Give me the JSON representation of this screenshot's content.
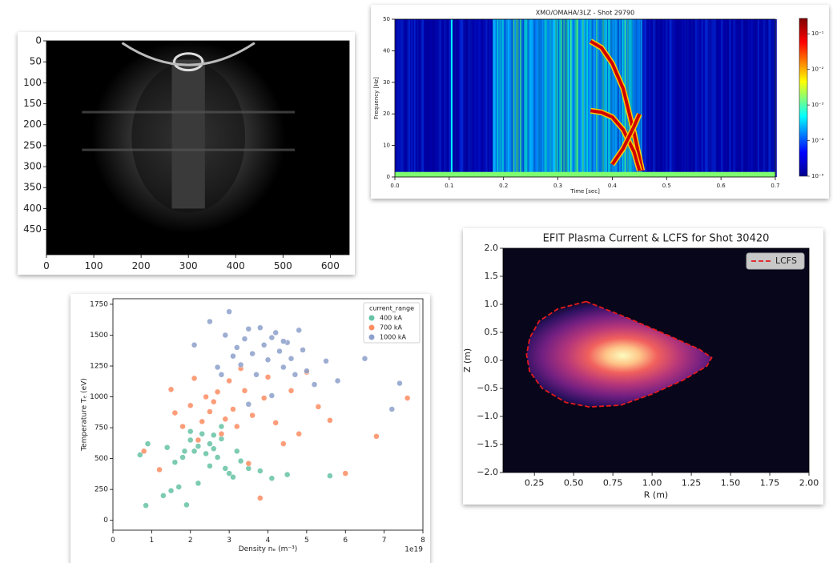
{
  "chart_data": [
    {
      "type": "image",
      "xlim": [
        0,
        640
      ],
      "ylim": [
        510,
        0
      ],
      "xticks": [
        0,
        100,
        200,
        300,
        400,
        500,
        600
      ],
      "yticks": [
        0,
        50,
        100,
        150,
        200,
        250,
        300,
        350,
        400,
        450
      ]
    },
    {
      "type": "heatmap",
      "title": "XMO/OMAHA/3LZ - Shot 29790",
      "xlabel": "Time [sec]",
      "ylabel": "Frequency [Hz]",
      "xlim": [
        0,
        0.7
      ],
      "ylim": [
        0,
        50
      ],
      "xticks": [
        {
          "value": 0,
          "label": "0.0"
        },
        0.1,
        0.2,
        0.3,
        0.4,
        0.5,
        0.6,
        0.7
      ],
      "yticks": [
        0,
        10,
        20,
        30,
        40,
        50
      ],
      "colorbar": {
        "scale": "log",
        "lim": [
          1e-05,
          0.27
        ],
        "ticks": [
          {
            "value": 1e-05,
            "label": "10⁻⁵"
          },
          {
            "value": 0.0001,
            "label": "10⁻⁴"
          },
          {
            "value": 0.001,
            "label": "10⁻³"
          },
          {
            "value": 0.01,
            "label": "10⁻²"
          },
          {
            "value": 0.1,
            "label": "10⁻¹"
          }
        ]
      }
    },
    {
      "type": "scatter",
      "xlabel": "Density nₑ (m⁻³)",
      "ylabel": "Temperature Tₑ (eV)",
      "x_offset_label": "1e19",
      "xlim": [
        0,
        8
      ],
      "ylim": [
        -80,
        1795
      ],
      "xticks": [
        0,
        1,
        2,
        3,
        4,
        5,
        6,
        7,
        8
      ],
      "yticks": [
        0,
        250,
        500,
        750,
        1000,
        1250,
        1500,
        1750
      ],
      "legend_title": "current_range",
      "legend": "upper right",
      "series": [
        {
          "name": "400 kA",
          "color": "#66c2a5",
          "x": [
            0.7,
            0.85,
            0.9,
            1.3,
            1.4,
            1.5,
            1.6,
            1.8,
            1.9,
            2.0,
            2.1,
            2.2,
            2.3,
            2.4,
            2.5,
            2.6,
            2.7,
            2.8,
            2.9,
            3.0,
            3.1,
            3.3,
            3.5,
            3.8,
            4.1,
            4.5,
            5.6,
            2.2,
            2.5,
            2.8,
            1.7,
            2.0,
            2.6,
            3.2,
            1.85
          ],
          "values": [
            530,
            120,
            620,
            200,
            590,
            240,
            470,
            510,
            125,
            650,
            560,
            600,
            700,
            540,
            620,
            580,
            510,
            660,
            420,
            380,
            350,
            480,
            420,
            400,
            340,
            370,
            360,
            300,
            440,
            760,
            270,
            720,
            690,
            560,
            560
          ]
        },
        {
          "name": "700 kA",
          "color": "#fc8d62",
          "x": [
            0.8,
            1.2,
            1.5,
            1.6,
            1.8,
            2.0,
            2.1,
            2.3,
            2.4,
            2.5,
            2.6,
            2.7,
            2.8,
            2.9,
            3.0,
            3.1,
            3.2,
            3.3,
            3.4,
            3.6,
            3.8,
            4.0,
            4.2,
            4.4,
            4.6,
            4.8,
            5.0,
            5.3,
            5.6,
            6.0,
            6.8,
            7.6,
            3.5,
            2.2,
            3.9
          ],
          "values": [
            560,
            410,
            1060,
            870,
            760,
            930,
            1150,
            800,
            1000,
            880,
            960,
            1040,
            700,
            820,
            1130,
            900,
            760,
            1230,
            1050,
            850,
            180,
            1160,
            790,
            620,
            1050,
            700,
            1200,
            920,
            810,
            380,
            680,
            990,
            460,
            650,
            990
          ]
        },
        {
          "name": "1000 kA",
          "color": "#8da0cb",
          "x": [
            2.1,
            2.5,
            2.7,
            2.9,
            3.0,
            3.1,
            3.2,
            3.3,
            3.4,
            3.5,
            3.6,
            3.7,
            3.8,
            3.9,
            4.0,
            4.1,
            4.2,
            4.3,
            4.4,
            4.5,
            4.6,
            4.7,
            4.8,
            4.9,
            5.0,
            5.2,
            5.5,
            5.8,
            6.5,
            7.2,
            7.4,
            2.8,
            3.5,
            4.1,
            4.4
          ],
          "values": [
            1420,
            1610,
            1240,
            1500,
            1690,
            1330,
            1400,
            1260,
            1470,
            1550,
            1350,
            1180,
            1560,
            1420,
            1300,
            1480,
            1520,
            1370,
            1240,
            1440,
            1310,
            1180,
            1540,
            1380,
            1210,
            1100,
            1290,
            1130,
            1310,
            900,
            1110,
            1180,
            940,
            1010,
            1450
          ]
        }
      ]
    },
    {
      "type": "contour",
      "title": "EFIT Plasma Current & LCFS for Shot 30420",
      "xlabel": "R (m)",
      "ylabel": "Z (m)",
      "xlim": [
        0.05,
        2.0
      ],
      "ylim": [
        -2,
        2
      ],
      "xticks": [
        0.25,
        {
          "value": 0.5,
          "label": "0.50"
        },
        0.75,
        {
          "value": 1,
          "label": "1.00"
        },
        1.25,
        {
          "value": 1.5,
          "label": "1.50"
        },
        1.75,
        {
          "value": 2,
          "label": "2.00"
        }
      ],
      "yticks": [
        {
          "value": -2,
          "label": "−2.0"
        },
        {
          "value": -1.5,
          "label": "−1.5"
        },
        {
          "value": -1,
          "label": "−1.0"
        },
        {
          "value": -0.5,
          "label": "−0.5"
        },
        {
          "value": 0,
          "label": "0.0"
        },
        0.5,
        {
          "value": 1,
          "label": "1.0"
        },
        1.5,
        {
          "value": 2,
          "label": "2.0"
        }
      ],
      "legend": "upper right",
      "series": [
        {
          "name": "LCFS",
          "color": "#e41a1c",
          "x": [
            0.58,
            0.4,
            0.28,
            0.22,
            0.2,
            0.22,
            0.3,
            0.45,
            0.6,
            0.8,
            1.0,
            1.2,
            1.35,
            1.38,
            1.3,
            1.1,
            0.85,
            0.58
          ],
          "values": [
            1.05,
            0.92,
            0.7,
            0.4,
            0.1,
            -0.2,
            -0.5,
            -0.75,
            -0.83,
            -0.8,
            -0.6,
            -0.35,
            -0.1,
            0.05,
            0.2,
            0.45,
            0.75,
            1.05
          ]
        }
      ]
    }
  ]
}
